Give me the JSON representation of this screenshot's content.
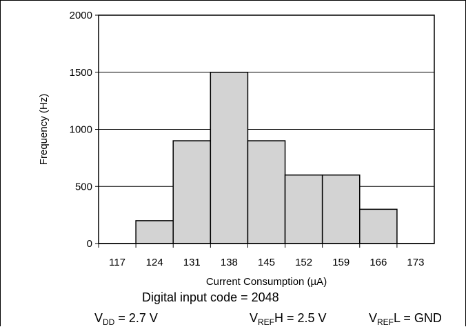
{
  "chart_data": {
    "type": "bar",
    "categories": [
      "117",
      "124",
      "131",
      "138",
      "145",
      "152",
      "159",
      "166",
      "173"
    ],
    "bins": [
      {
        "from": 117,
        "to": 124,
        "value": 0
      },
      {
        "from": 124,
        "to": 131,
        "value": 200
      },
      {
        "from": 131,
        "to": 138,
        "value": 900
      },
      {
        "from": 138,
        "to": 145,
        "value": 1500
      },
      {
        "from": 145,
        "to": 152,
        "value": 900
      },
      {
        "from": 152,
        "to": 159,
        "value": 600
      },
      {
        "from": 159,
        "to": 166,
        "value": 600
      },
      {
        "from": 166,
        "to": 173,
        "value": 300
      },
      {
        "from": 173,
        "to": 180,
        "value": 0
      }
    ],
    "xlabel": "Current Consumption (µA)",
    "ylabel": "Frequency (Hz)",
    "xticks": [
      117,
      124,
      131,
      138,
      145,
      152,
      159,
      166,
      173
    ],
    "yticks": [
      0,
      500,
      1000,
      1500,
      2000
    ],
    "xlim": [
      117,
      180
    ],
    "ylim": [
      0,
      2000
    ],
    "grid": "horizontal",
    "bar_color": "#d3d3d3",
    "edge_color": "#000000"
  },
  "notes": {
    "code_line": "Digital input code = 2048",
    "vdd": {
      "main": "V",
      "sub": "DD",
      "rest": " = 2.7 V"
    },
    "vrefh": {
      "main": "V",
      "sub": "REF",
      "rest": "H = 2.5 V"
    },
    "vrefl": {
      "main": "V",
      "sub": "REF",
      "rest": "L = GND"
    }
  }
}
